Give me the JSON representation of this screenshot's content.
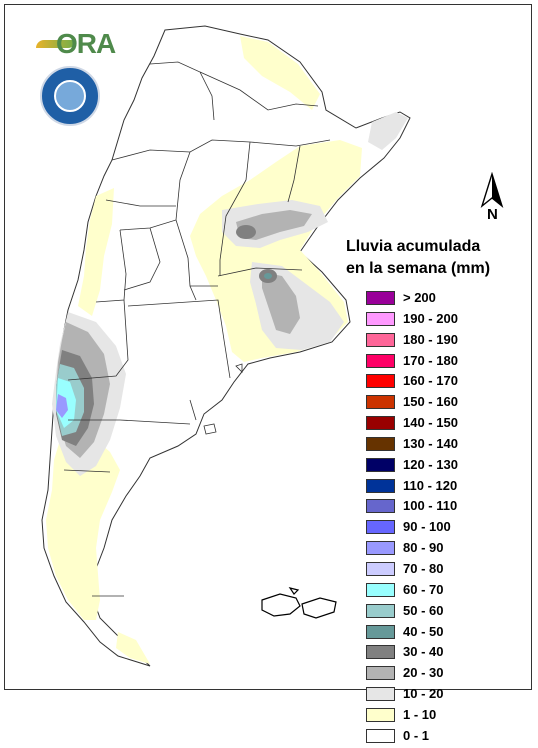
{
  "legend": {
    "title_line1": "Lluvia acumulada",
    "title_line2": "en la semana (mm)",
    "items": [
      {
        "label": "> 200",
        "color": "#990099"
      },
      {
        "label": "190 - 200",
        "color": "#ff99ff"
      },
      {
        "label": "180 - 190",
        "color": "#ff6699"
      },
      {
        "label": "170 - 180",
        "color": "#ff0066"
      },
      {
        "label": "160 - 170",
        "color": "#ff0000"
      },
      {
        "label": "150 - 160",
        "color": "#cc3300"
      },
      {
        "label": "140 - 150",
        "color": "#990000"
      },
      {
        "label": "130 - 140",
        "color": "#663300"
      },
      {
        "label": "120 - 130",
        "color": "#000066"
      },
      {
        "label": "110 - 120",
        "color": "#003399"
      },
      {
        "label": "100 - 110",
        "color": "#6666cc"
      },
      {
        "label": "90 - 100",
        "color": "#6666ff"
      },
      {
        "label": "80 - 90",
        "color": "#9999ff"
      },
      {
        "label": "70 - 80",
        "color": "#ccccff"
      },
      {
        "label": "60 - 70",
        "color": "#99ffff"
      },
      {
        "label": "50 - 60",
        "color": "#99cccc"
      },
      {
        "label": "40 - 50",
        "color": "#669999"
      },
      {
        "label": "30 - 40",
        "color": "#808080"
      },
      {
        "label": "20 - 30",
        "color": "#b3b3b3"
      },
      {
        "label": "10 - 20",
        "color": "#e6e6e6"
      },
      {
        "label": "1 - 10",
        "color": "#ffffcc"
      },
      {
        "label": "0 - 1",
        "color": "#ffffff"
      }
    ]
  },
  "logos": {
    "ora_text": "ORA",
    "seal_text": "SERVICIO METEOROLOGICO NACIONAL ARGENTINA"
  },
  "north_label": "N"
}
